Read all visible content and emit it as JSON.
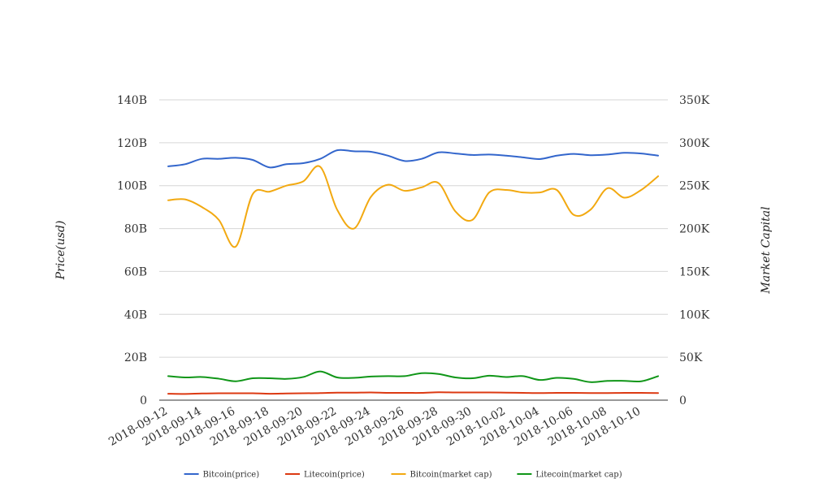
{
  "chart_data": {
    "type": "line",
    "title": "",
    "x": [
      "2018-09-12",
      "2018-09-13",
      "2018-09-14",
      "2018-09-15",
      "2018-09-16",
      "2018-09-17",
      "2018-09-18",
      "2018-09-19",
      "2018-09-20",
      "2018-09-21",
      "2018-09-22",
      "2018-09-23",
      "2018-09-24",
      "2018-09-25",
      "2018-09-26",
      "2018-09-27",
      "2018-09-28",
      "2018-09-29",
      "2018-09-30",
      "2018-10-01",
      "2018-10-02",
      "2018-10-03",
      "2018-10-04",
      "2018-10-05",
      "2018-10-06",
      "2018-10-07",
      "2018-10-08",
      "2018-10-09",
      "2018-10-10",
      "2018-10-11"
    ],
    "x_tick_labels": [
      "2018-09-12",
      "2018-09-14",
      "2018-09-16",
      "2018-09-18",
      "2018-09-20",
      "2018-09-22",
      "2018-09-24",
      "2018-09-26",
      "2018-09-28",
      "2018-09-30",
      "2018-10-02",
      "2018-10-04",
      "2018-10-06",
      "2018-10-08",
      "2018-10-10"
    ],
    "y_left": {
      "label": "Price(usd)",
      "range": [
        0,
        140000000000
      ],
      "ticks": [
        0,
        20000000000,
        40000000000,
        60000000000,
        80000000000,
        100000000000,
        120000000000,
        140000000000
      ],
      "tick_labels": [
        "0",
        "20B",
        "40B",
        "60B",
        "80B",
        "100B",
        "120B",
        "140B"
      ]
    },
    "y_right": {
      "label": "Market Capital",
      "range": [
        0,
        350000
      ],
      "ticks": [
        0,
        50000,
        100000,
        150000,
        200000,
        250000,
        300000,
        350000
      ],
      "tick_labels": [
        "0",
        "50K",
        "100K",
        "150K",
        "200K",
        "250K",
        "300K",
        "350K"
      ]
    },
    "grid": true,
    "legend_position": "bottom",
    "series": [
      {
        "name": "Bitcoin(price)",
        "color": "#3366cc",
        "axis": "left",
        "values": [
          109000000000,
          110000000000,
          112500000000,
          112500000000,
          113000000000,
          112000000000,
          108500000000,
          110000000000,
          110500000000,
          112500000000,
          116500000000,
          116000000000,
          115800000000,
          114000000000,
          111500000000,
          112500000000,
          115500000000,
          115000000000,
          114300000000,
          114500000000,
          114000000000,
          113200000000,
          112400000000,
          114000000000,
          114800000000,
          114200000000,
          114500000000,
          115300000000,
          115000000000,
          114000000000
        ]
      },
      {
        "name": "Litecoin(price)",
        "color": "#dc3912",
        "axis": "left",
        "values": [
          3000000000,
          2900000000,
          3100000000,
          3200000000,
          3200000000,
          3200000000,
          3000000000,
          3100000000,
          3200000000,
          3300000000,
          3500000000,
          3500000000,
          3600000000,
          3400000000,
          3400000000,
          3400000000,
          3700000000,
          3600000000,
          3600000000,
          3600000000,
          3500000000,
          3400000000,
          3300000000,
          3400000000,
          3400000000,
          3300000000,
          3300000000,
          3400000000,
          3400000000,
          3300000000
        ]
      },
      {
        "name": "Bitcoin(market cap)",
        "color": "#f2a911",
        "axis": "right",
        "values": [
          233000,
          234000,
          225000,
          210000,
          179000,
          240000,
          243000,
          250000,
          255000,
          272000,
          222000,
          200000,
          237000,
          251000,
          244000,
          248000,
          253000,
          220000,
          210000,
          242000,
          245000,
          242000,
          242000,
          245000,
          216000,
          222000,
          247000,
          236000,
          245000,
          261000
        ]
      },
      {
        "name": "Litecoin(market cap)",
        "color": "#109618",
        "axis": "right",
        "values": [
          28000,
          26500,
          27000,
          25000,
          22000,
          25500,
          25500,
          24800,
          27000,
          33500,
          26500,
          26000,
          27500,
          28000,
          28000,
          31500,
          30500,
          26500,
          25500,
          28500,
          27000,
          28000,
          23500,
          26000,
          24800,
          21000,
          22500,
          22500,
          22000,
          28000
        ]
      }
    ]
  }
}
